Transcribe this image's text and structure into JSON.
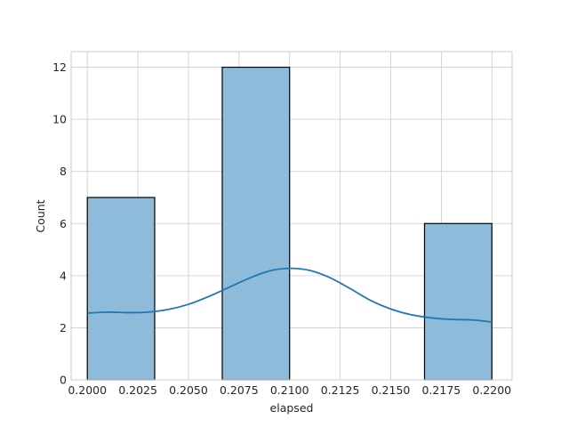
{
  "chart_data": {
    "type": "histogram",
    "title": "",
    "xlabel": "elapsed",
    "ylabel": "Count",
    "xlim": [
      0.1992,
      0.221
    ],
    "ylim": [
      0,
      12.6
    ],
    "x_ticks": [
      0.2,
      0.2025,
      0.205,
      0.2075,
      0.21,
      0.2125,
      0.215,
      0.2175,
      0.22
    ],
    "x_tick_labels": [
      "0.2000",
      "0.2025",
      "0.2050",
      "0.2075",
      "0.2100",
      "0.2125",
      "0.2150",
      "0.2175",
      "0.2200"
    ],
    "y_ticks": [
      0,
      2,
      4,
      6,
      8,
      10,
      12
    ],
    "y_tick_labels": [
      "0",
      "2",
      "4",
      "6",
      "8",
      "10",
      "12"
    ],
    "bins": [
      {
        "x0": 0.2,
        "x1": 0.20333,
        "count": 7
      },
      {
        "x0": 0.20333,
        "x1": 0.20667,
        "count": 0
      },
      {
        "x0": 0.20667,
        "x1": 0.21,
        "count": 12
      },
      {
        "x0": 0.21,
        "x1": 0.21333,
        "count": 0
      },
      {
        "x0": 0.21333,
        "x1": 0.21667,
        "count": 0
      },
      {
        "x0": 0.21667,
        "x1": 0.22,
        "count": 6
      }
    ],
    "kde": {
      "x": [
        0.2,
        0.201,
        0.202,
        0.203,
        0.204,
        0.205,
        0.206,
        0.207,
        0.208,
        0.209,
        0.21,
        0.211,
        0.212,
        0.213,
        0.214,
        0.215,
        0.216,
        0.217,
        0.218,
        0.219,
        0.22
      ],
      "y": [
        2.56,
        2.6,
        2.58,
        2.6,
        2.7,
        2.9,
        3.2,
        3.55,
        3.9,
        4.18,
        4.28,
        4.2,
        3.92,
        3.5,
        3.05,
        2.72,
        2.5,
        2.38,
        2.32,
        2.3,
        2.22
      ]
    },
    "grid": true,
    "legend": "none",
    "colors": {
      "bar_fill": "#8fbbdb",
      "bar_edge": "#000000",
      "kde_line": "#1f77b4",
      "grid": "#cccccc",
      "axes_edge": "#cccccc",
      "text": "#262626"
    }
  }
}
